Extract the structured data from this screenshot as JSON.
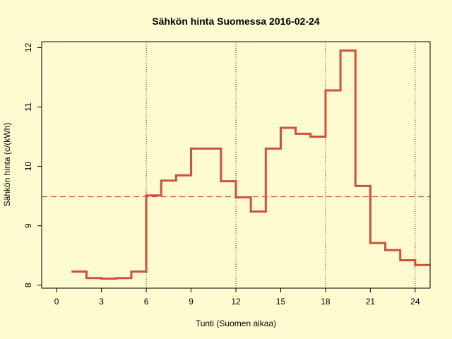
{
  "colors": {
    "background": "#fffbd0",
    "price_line": "#d0503a",
    "mean_line": "#d0503a",
    "gridlines": "#000000",
    "axes": "#000000"
  },
  "chart_data": {
    "type": "line",
    "step": true,
    "title": "Sähkön hinta Suomessa 2016-02-24",
    "xlabel": "Tunti (Suomen aikaa)",
    "ylabel": "Sähkön hinta (c/(kWh)",
    "xlim": [
      -1,
      25
    ],
    "ylim": [
      7.95,
      12.1
    ],
    "x_ticks": [
      0,
      3,
      6,
      9,
      12,
      15,
      18,
      21,
      24
    ],
    "y_ticks": [
      8,
      9,
      10,
      11,
      12
    ],
    "vertical_gridlines": [
      6,
      12,
      18,
      24
    ],
    "mean_price": 9.49,
    "series": [
      {
        "x": [
          1,
          2,
          3,
          4,
          5,
          6,
          7,
          8,
          9,
          10,
          11,
          12,
          13,
          14,
          15,
          16,
          17,
          18,
          19,
          20,
          21,
          22,
          23,
          24,
          25
        ],
        "values": [
          8.23,
          8.12,
          8.11,
          8.12,
          8.23,
          9.51,
          9.76,
          9.85,
          10.3,
          10.3,
          9.75,
          9.48,
          9.24,
          10.3,
          10.65,
          10.55,
          10.5,
          11.28,
          11.95,
          9.67,
          8.71,
          8.59,
          8.42,
          8.34,
          8.34
        ]
      }
    ]
  }
}
